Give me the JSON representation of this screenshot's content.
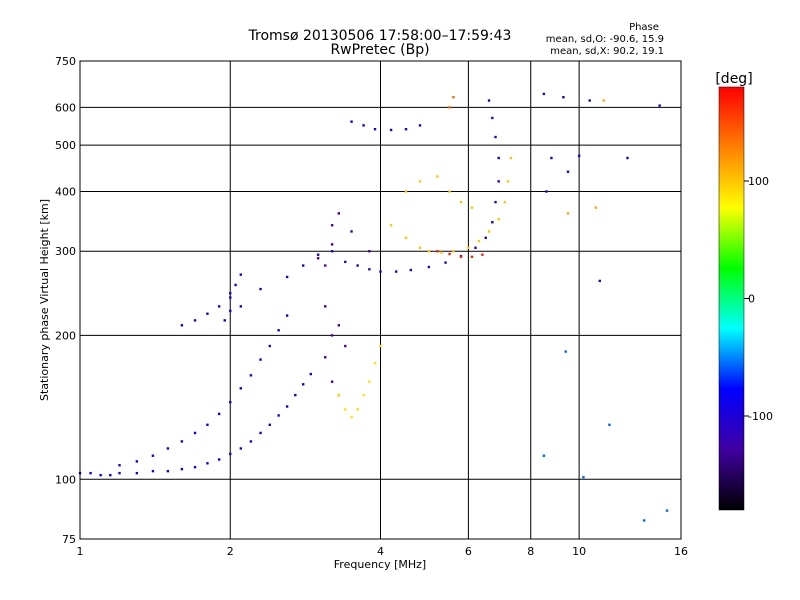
{
  "chart_data": {
    "type": "scatter",
    "title": "Tromsø 20130506 17:58:00–17:59:43",
    "subtitle": "RwPretec (Bp)",
    "xlabel": "Frequency [MHz]",
    "ylabel": "Stationary phase Virtual Height [km]",
    "x_scale": "log",
    "y_scale": "log",
    "xlim": [
      1,
      16
    ],
    "ylim": [
      75,
      750
    ],
    "x_ticks": [
      1,
      2,
      4,
      6,
      8,
      10,
      16
    ],
    "x_tick_labels": [
      "1",
      "2",
      "4",
      "6",
      "8",
      "10",
      "16"
    ],
    "y_ticks": [
      75,
      100,
      200,
      300,
      400,
      500,
      600,
      750
    ],
    "y_tick_labels": [
      "75",
      "100",
      "200",
      "300",
      "400",
      "500",
      "600",
      "750"
    ],
    "grid": true,
    "phase_info": {
      "title": "Phase",
      "line_o": "mean, sd,O: -90.6, 15.9",
      "line_x": "mean, sd,X:  90.2, 19.1"
    },
    "colorbar": {
      "label": "[deg]",
      "range": [
        -180,
        180
      ],
      "ticks": [
        100,
        0,
        -100
      ],
      "tick_labels": [
        "100",
        "0",
        "-100"
      ],
      "colors": [
        "#ff0000",
        "#ff8000",
        "#ffff00",
        "#00ff00",
        "#00ffff",
        "#0000ff",
        "#4000a0",
        "#000000"
      ]
    },
    "series": [
      {
        "points": [
          [
            1.0,
            103
          ],
          [
            1.05,
            103
          ],
          [
            1.1,
            102
          ],
          [
            1.15,
            102
          ],
          [
            1.2,
            103
          ],
          [
            1.3,
            103
          ],
          [
            1.4,
            104
          ],
          [
            1.5,
            104
          ],
          [
            1.6,
            105
          ],
          [
            1.7,
            106
          ],
          [
            1.8,
            108
          ],
          [
            1.9,
            110
          ],
          [
            2.0,
            113
          ],
          [
            2.1,
            116
          ],
          [
            2.2,
            120
          ],
          [
            2.3,
            125
          ],
          [
            2.4,
            130
          ],
          [
            2.5,
            136
          ],
          [
            2.6,
            142
          ],
          [
            2.7,
            150
          ],
          [
            2.8,
            158
          ],
          [
            2.9,
            166
          ]
        ],
        "phase": -110
      },
      {
        "points": [
          [
            1.2,
            107
          ],
          [
            1.3,
            109
          ],
          [
            1.4,
            112
          ],
          [
            1.5,
            116
          ],
          [
            1.6,
            120
          ],
          [
            1.7,
            125
          ],
          [
            1.8,
            130
          ],
          [
            1.9,
            137
          ],
          [
            2.0,
            145
          ],
          [
            2.1,
            155
          ],
          [
            2.2,
            165
          ],
          [
            2.3,
            178
          ],
          [
            2.4,
            190
          ],
          [
            2.5,
            205
          ],
          [
            2.6,
            220
          ]
        ],
        "phase": -105
      },
      {
        "points": [
          [
            2.0,
            240
          ],
          [
            2.05,
            255
          ],
          [
            2.1,
            268
          ],
          [
            2.0,
            225
          ],
          [
            1.95,
            215
          ],
          [
            2.1,
            230
          ]
        ],
        "phase": -110
      },
      {
        "points": [
          [
            1.6,
            210
          ],
          [
            1.7,
            215
          ],
          [
            1.8,
            222
          ],
          [
            1.9,
            230
          ],
          [
            2.0,
            245
          ],
          [
            2.3,
            250
          ],
          [
            2.6,
            265
          ],
          [
            2.8,
            280
          ],
          [
            3.0,
            295
          ]
        ],
        "phase": -115
      },
      {
        "points": [
          [
            3.2,
            310
          ],
          [
            3.1,
            280
          ],
          [
            3.0,
            290
          ],
          [
            3.2,
            340
          ],
          [
            3.3,
            360
          ],
          [
            3.5,
            330
          ],
          [
            3.8,
            300
          ],
          [
            3.1,
            230
          ],
          [
            3.2,
            200
          ],
          [
            3.1,
            180
          ],
          [
            3.3,
            210
          ],
          [
            3.4,
            190
          ],
          [
            3.3,
            150
          ],
          [
            3.2,
            160
          ]
        ],
        "phase": -135
      },
      {
        "points": [
          [
            3.2,
            300
          ],
          [
            3.4,
            285
          ],
          [
            3.6,
            280
          ],
          [
            3.8,
            275
          ],
          [
            4.0,
            272
          ],
          [
            4.3,
            272
          ],
          [
            4.6,
            274
          ],
          [
            5.0,
            278
          ],
          [
            5.4,
            284
          ],
          [
            5.8,
            293
          ],
          [
            6.2,
            305
          ],
          [
            6.5,
            320
          ],
          [
            6.7,
            345
          ],
          [
            6.8,
            380
          ],
          [
            6.9,
            420
          ],
          [
            6.9,
            470
          ],
          [
            6.8,
            520
          ],
          [
            6.7,
            570
          ],
          [
            6.6,
            620
          ]
        ],
        "phase": -120
      },
      {
        "points": [
          [
            3.5,
            560
          ],
          [
            3.7,
            550
          ],
          [
            3.9,
            540
          ],
          [
            4.2,
            538
          ],
          [
            4.5,
            540
          ],
          [
            4.8,
            550
          ]
        ],
        "phase": -110
      },
      {
        "points": [
          [
            3.3,
            150
          ],
          [
            3.4,
            140
          ],
          [
            3.5,
            135
          ],
          [
            3.6,
            140
          ],
          [
            3.7,
            150
          ],
          [
            3.8,
            160
          ],
          [
            3.9,
            175
          ],
          [
            4.0,
            190
          ]
        ],
        "phase": 110
      },
      {
        "points": [
          [
            4.2,
            340
          ],
          [
            4.5,
            320
          ],
          [
            4.8,
            305
          ],
          [
            5.0,
            300
          ],
          [
            5.3,
            298
          ],
          [
            5.6,
            300
          ],
          [
            6.0,
            305
          ],
          [
            6.3,
            315
          ],
          [
            6.6,
            330
          ],
          [
            6.9,
            350
          ],
          [
            7.1,
            380
          ],
          [
            7.2,
            420
          ],
          [
            7.3,
            470
          ]
        ],
        "phase": 120
      },
      {
        "points": [
          [
            4.5,
            400
          ],
          [
            4.8,
            420
          ],
          [
            5.2,
            430
          ],
          [
            5.5,
            400
          ],
          [
            5.8,
            380
          ],
          [
            6.1,
            370
          ]
        ],
        "phase": 120
      },
      {
        "points": [
          [
            5.2,
            300
          ],
          [
            5.5,
            296
          ],
          [
            5.8,
            292
          ],
          [
            6.1,
            292
          ],
          [
            6.4,
            295
          ]
        ],
        "phase": 170
      },
      {
        "points": [
          [
            5.5,
            600
          ],
          [
            5.6,
            630
          ]
        ],
        "phase": 150
      },
      {
        "points": [
          [
            8.5,
            640
          ],
          [
            9.3,
            630
          ],
          [
            10.5,
            620
          ],
          [
            14.5,
            605
          ],
          [
            8.8,
            470
          ],
          [
            10.0,
            475
          ],
          [
            12.5,
            470
          ],
          [
            8.6,
            400
          ],
          [
            11.0,
            260
          ],
          [
            9.5,
            440
          ]
        ],
        "phase": -120
      },
      {
        "points": [
          [
            10.8,
            370
          ],
          [
            9.5,
            360
          ],
          [
            11.2,
            620
          ]
        ],
        "phase": 130
      },
      {
        "points": [
          [
            9.4,
            185
          ],
          [
            11.5,
            130
          ],
          [
            13.5,
            82
          ],
          [
            15.0,
            86
          ],
          [
            8.5,
            112
          ],
          [
            10.2,
            101
          ]
        ],
        "phase": -80
      }
    ]
  }
}
